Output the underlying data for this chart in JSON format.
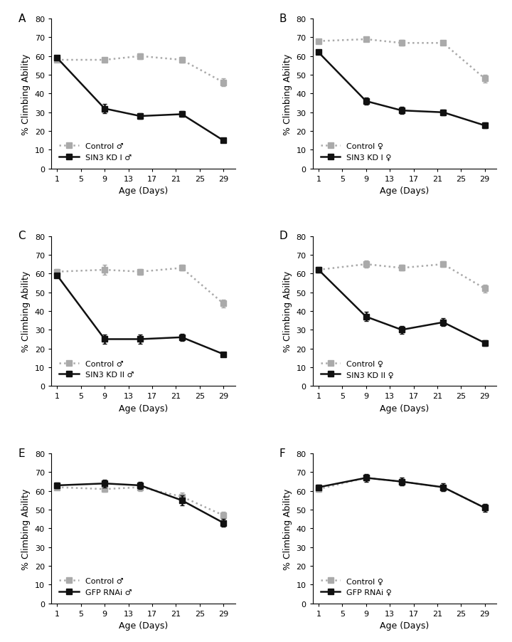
{
  "x_ticks": [
    1,
    5,
    9,
    13,
    17,
    21,
    25,
    29
  ],
  "x_data": [
    1,
    9,
    15,
    22,
    29
  ],
  "panels": [
    {
      "label": "A",
      "control_label": "Control ♂",
      "kd_label": "SIN3 KD I ♂",
      "control_y": [
        58,
        58,
        60,
        58,
        46
      ],
      "control_err": [
        1,
        1,
        1.5,
        1.5,
        2
      ],
      "kd_y": [
        59,
        32,
        28,
        29,
        15
      ],
      "kd_err": [
        1,
        2.5,
        1.5,
        1.5,
        1
      ]
    },
    {
      "label": "B",
      "control_label": "Control ♀",
      "kd_label": "SIN3 KD I ♀",
      "control_y": [
        68,
        69,
        67,
        67,
        48
      ],
      "control_err": [
        1,
        1,
        1.5,
        1,
        2
      ],
      "kd_y": [
        62,
        36,
        31,
        30,
        23
      ],
      "kd_err": [
        1,
        2,
        2,
        1.5,
        1.5
      ]
    },
    {
      "label": "C",
      "control_label": "Control ♂",
      "kd_label": "SIN3 KD II ♂",
      "control_y": [
        61,
        62,
        61,
        63,
        44
      ],
      "control_err": [
        1.5,
        2.5,
        1.5,
        1.5,
        2
      ],
      "kd_y": [
        59,
        25,
        25,
        26,
        17
      ],
      "kd_err": [
        1,
        2.5,
        2.5,
        2,
        1
      ]
    },
    {
      "label": "D",
      "control_label": "Control ♀",
      "kd_label": "SIN3 KD II ♀",
      "control_y": [
        62,
        65,
        63,
        65,
        52
      ],
      "control_err": [
        1.5,
        2,
        1.5,
        1.5,
        2
      ],
      "kd_y": [
        62,
        37,
        30,
        34,
        23
      ],
      "kd_err": [
        1,
        2.5,
        2,
        2,
        1.5
      ]
    },
    {
      "label": "E",
      "control_label": "Control ♂",
      "kd_label": "GFP RNAi ♂",
      "control_y": [
        62,
        61,
        62,
        57,
        47
      ],
      "control_err": [
        1.5,
        1.5,
        2,
        2,
        2
      ],
      "kd_y": [
        63,
        64,
        63,
        55,
        43
      ],
      "kd_err": [
        1.5,
        2,
        2,
        2.5,
        2
      ]
    },
    {
      "label": "F",
      "control_label": "Control ♀",
      "kd_label": "GFP RNAi ♀",
      "control_y": [
        61,
        67,
        65,
        62,
        51
      ],
      "control_err": [
        1.5,
        1.5,
        2,
        2,
        2
      ],
      "kd_y": [
        62,
        67,
        65,
        62,
        51
      ],
      "kd_err": [
        1.5,
        2,
        2,
        2,
        2
      ]
    }
  ],
  "control_color": "#aaaaaa",
  "kd_color": "#111111",
  "control_linestyle": "dotted",
  "kd_linestyle": "solid",
  "ylabel": "% Climbing Ability",
  "xlabel": "Age (Days)",
  "ylim": [
    0,
    80
  ],
  "yticks": [
    0,
    10,
    20,
    30,
    40,
    50,
    60,
    70,
    80
  ],
  "marker": "s",
  "markersize": 6,
  "linewidth": 1.8,
  "legend_fontsize": 8,
  "tick_fontsize": 8,
  "label_fontsize": 9,
  "panel_label_fontsize": 11
}
